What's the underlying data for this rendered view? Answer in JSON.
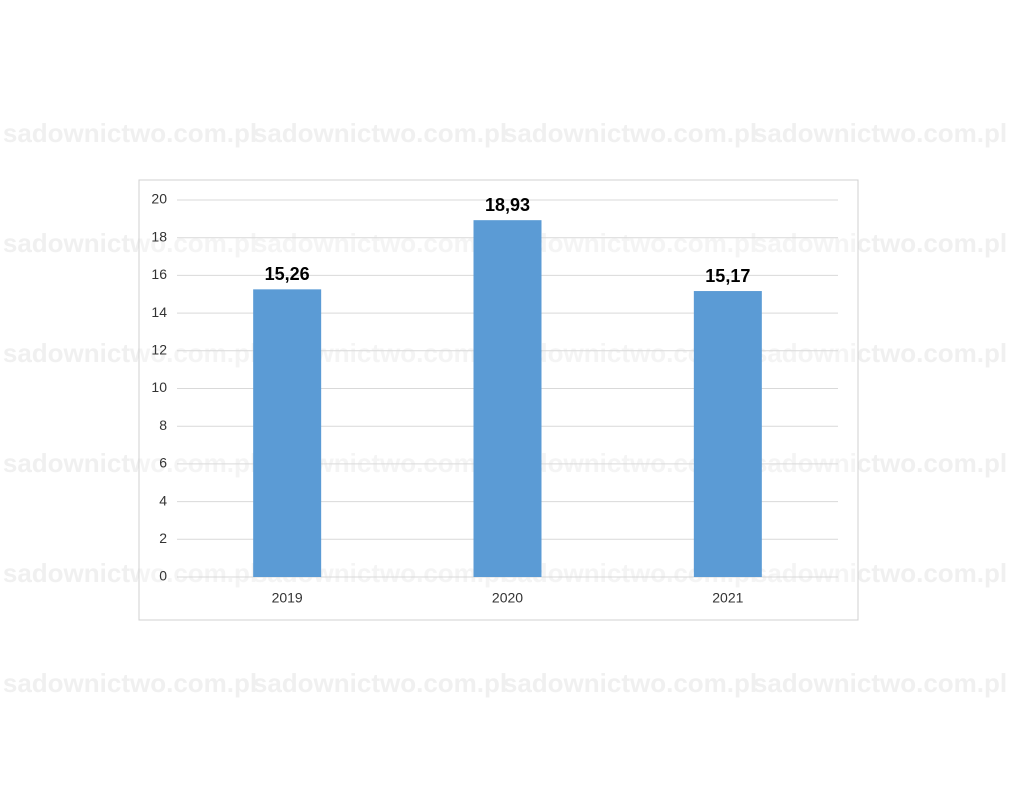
{
  "chart_data": {
    "type": "bar",
    "categories": [
      "2019",
      "2020",
      "2021"
    ],
    "values": [
      15.26,
      18.93,
      15.17
    ],
    "value_labels": [
      "15,26",
      "18,93",
      "15,17"
    ],
    "color": "#5b9bd5",
    "ylim": [
      0,
      20
    ],
    "yticks": [
      0,
      2,
      4,
      6,
      8,
      10,
      12,
      14,
      16,
      18,
      20
    ],
    "grid": true
  },
  "watermark": "sadownictwo.com.pl"
}
